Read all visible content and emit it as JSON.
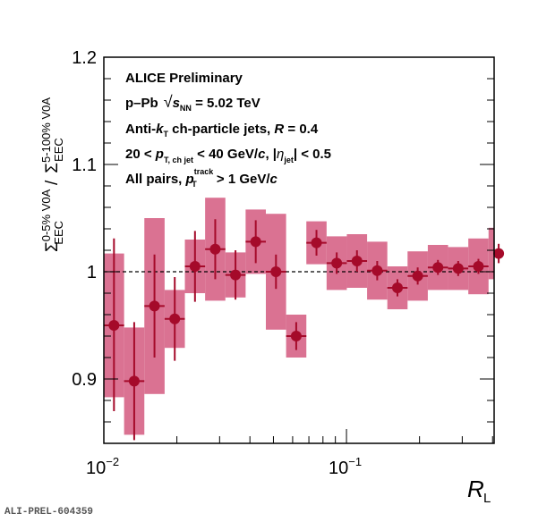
{
  "chart_data": {
    "type": "scatter",
    "title": "",
    "xlabel": "R_L",
    "ylabel": "Σ_EEC^{0-5% V0A} / Σ_EEC^{5-100% V0A}",
    "xscale": "log",
    "xlim": [
      0.01,
      0.406
    ],
    "ylim": [
      0.84,
      1.2
    ],
    "grid": false,
    "reference_line": 1.0,
    "y_ticks": [
      {
        "value": 0.9,
        "label": "0.9"
      },
      {
        "value": 1.0,
        "label": "1"
      },
      {
        "value": 1.1,
        "label": "1.1"
      },
      {
        "value": 1.2,
        "label": "1.2"
      }
    ],
    "x_ticks": [
      {
        "value": 0.01,
        "base": "10",
        "exp": "−2"
      },
      {
        "value": 0.1,
        "base": "10",
        "exp": "−1"
      }
    ],
    "annotations": [
      "ALICE Preliminary",
      "p–Pb √s_NN = 5.02 TeV",
      "Anti-k_T ch-particle jets, R = 0.4",
      "20 < p_T,ch jet < 40 GeV/c, |η_jet| < 0.5",
      "All pairs, p_T^track > 1 GeV/c"
    ],
    "series": [
      {
        "name": "p-Pb 0-5% / 5-100% V0A",
        "color": "#a50a2a",
        "syst_color": "#d86a8c",
        "points": [
          {
            "x": 0.01101,
            "y": 0.95,
            "stat": [
              0.08,
              0.081
            ],
            "syst": [
              0.067,
              0.067
            ]
          },
          {
            "x": 0.01334,
            "y": 0.898,
            "stat": [
              0.055,
              0.055
            ],
            "syst": [
              0.05,
              0.05
            ]
          },
          {
            "x": 0.01617,
            "y": 0.968,
            "stat": [
              0.048,
              0.048
            ],
            "syst": [
              0.082,
              0.082
            ]
          },
          {
            "x": 0.0196,
            "y": 0.956,
            "stat": [
              0.039,
              0.039
            ],
            "syst": [
              0.027,
              0.027
            ]
          },
          {
            "x": 0.02375,
            "y": 1.005,
            "stat": [
              0.033,
              0.033
            ],
            "syst": [
              0.025,
              0.025
            ]
          },
          {
            "x": 0.02878,
            "y": 1.021,
            "stat": [
              0.028,
              0.028
            ],
            "syst": [
              0.048,
              0.048
            ]
          },
          {
            "x": 0.03488,
            "y": 0.997,
            "stat": [
              0.023,
              0.023
            ],
            "syst": [
              0.021,
              0.021
            ]
          },
          {
            "x": 0.04227,
            "y": 1.028,
            "stat": [
              0.02,
              0.02
            ],
            "syst": [
              0.03,
              0.03
            ]
          },
          {
            "x": 0.05122,
            "y": 1.0,
            "stat": [
              0.016,
              0.016
            ],
            "syst": [
              0.054,
              0.054
            ]
          },
          {
            "x": 0.06207,
            "y": 0.94,
            "stat": [
              0.013,
              0.013
            ],
            "syst": [
              0.02,
              0.02
            ]
          },
          {
            "x": 0.07522,
            "y": 1.027,
            "stat": [
              0.012,
              0.012
            ],
            "syst": [
              0.02,
              0.02
            ]
          },
          {
            "x": 0.09115,
            "y": 1.008,
            "stat": [
              0.01,
              0.01
            ],
            "syst": [
              0.025,
              0.025
            ]
          },
          {
            "x": 0.11046,
            "y": 1.01,
            "stat": [
              0.01,
              0.01
            ],
            "syst": [
              0.025,
              0.025
            ]
          },
          {
            "x": 0.13386,
            "y": 1.001,
            "stat": [
              0.009,
              0.009
            ],
            "syst": [
              0.027,
              0.027
            ]
          },
          {
            "x": 0.16221,
            "y": 0.985,
            "stat": [
              0.008,
              0.008
            ],
            "syst": [
              0.02,
              0.02
            ]
          },
          {
            "x": 0.19656,
            "y": 0.996,
            "stat": [
              0.008,
              0.008
            ],
            "syst": [
              0.023,
              0.023
            ]
          },
          {
            "x": 0.2382,
            "y": 1.004,
            "stat": [
              0.007,
              0.007
            ],
            "syst": [
              0.021,
              0.021
            ]
          },
          {
            "x": 0.28866,
            "y": 1.003,
            "stat": [
              0.007,
              0.007
            ],
            "syst": [
              0.02,
              0.02
            ]
          },
          {
            "x": 0.3498,
            "y": 1.005,
            "stat": [
              0.007,
              0.007
            ],
            "syst": [
              0.026,
              0.026
            ]
          },
          {
            "x": 0.42389,
            "y": 1.017,
            "stat": [
              0.009,
              0.009
            ],
            "syst": [
              0.024,
              0.024
            ]
          }
        ]
      }
    ]
  },
  "footer": "ALI-PREL-604359"
}
